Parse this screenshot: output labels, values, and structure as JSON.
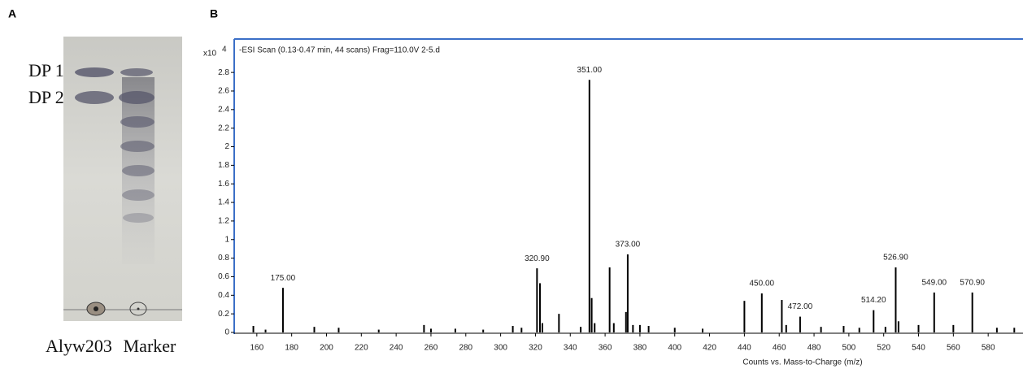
{
  "panel_a": {
    "label": "A",
    "band_labels": [
      "DP 1",
      "DP 2"
    ],
    "lane_labels": [
      "Alyw203",
      "Marker"
    ]
  },
  "panel_b_label": "B",
  "chart_data": {
    "type": "stem",
    "title": "-ESI Scan (0.13-0.47 min, 44 scans) Frag=110.0V 2-5.d",
    "y_scale_label": "x10",
    "y_scale_exponent": "4",
    "x_label": "Counts vs. Mass-to-Charge (m/z)",
    "color": "#000000",
    "frame_color": "#3b6fc7",
    "x": [
      158,
      165,
      175,
      193,
      207,
      230,
      256,
      260,
      274,
      290,
      307,
      312,
      320.9,
      322.6,
      324,
      333.5,
      346,
      351,
      352.3,
      354,
      362.6,
      365,
      372,
      373,
      376,
      380,
      385,
      400,
      416,
      440,
      450,
      461.5,
      464,
      472,
      484,
      497,
      506,
      514.2,
      521,
      526.9,
      528.5,
      540,
      549,
      560,
      570.9,
      585,
      595
    ],
    "values": [
      0.07,
      0.03,
      0.48,
      0.06,
      0.05,
      0.03,
      0.08,
      0.04,
      0.04,
      0.03,
      0.07,
      0.05,
      0.69,
      0.53,
      0.1,
      0.2,
      0.06,
      2.72,
      0.37,
      0.1,
      0.7,
      0.1,
      0.22,
      0.84,
      0.08,
      0.08,
      0.07,
      0.05,
      0.04,
      0.34,
      0.42,
      0.35,
      0.08,
      0.17,
      0.06,
      0.07,
      0.05,
      0.24,
      0.06,
      0.7,
      0.12,
      0.08,
      0.43,
      0.08,
      0.43,
      0.05,
      0.05
    ],
    "peak_labels": [
      null,
      null,
      "175.00",
      null,
      null,
      null,
      null,
      null,
      null,
      null,
      null,
      null,
      "320.90",
      null,
      null,
      null,
      null,
      "351.00",
      null,
      null,
      null,
      null,
      null,
      "373.00",
      null,
      null,
      null,
      null,
      null,
      null,
      "450.00",
      null,
      null,
      "472.00",
      null,
      null,
      null,
      "514.20",
      null,
      "526.90",
      null,
      null,
      "549.00",
      null,
      "570.90",
      null,
      null
    ],
    "xlim": [
      147,
      600
    ],
    "ylim": [
      0,
      3.16
    ],
    "xticks": [
      160,
      180,
      200,
      220,
      240,
      260,
      280,
      300,
      320,
      340,
      360,
      380,
      400,
      420,
      440,
      460,
      480,
      500,
      520,
      540,
      560,
      580
    ],
    "yticks": [
      0,
      0.2,
      0.4,
      0.6,
      0.8,
      1,
      1.2,
      1.4,
      1.6,
      1.8,
      2,
      2.2,
      2.4,
      2.6,
      2.8
    ]
  }
}
